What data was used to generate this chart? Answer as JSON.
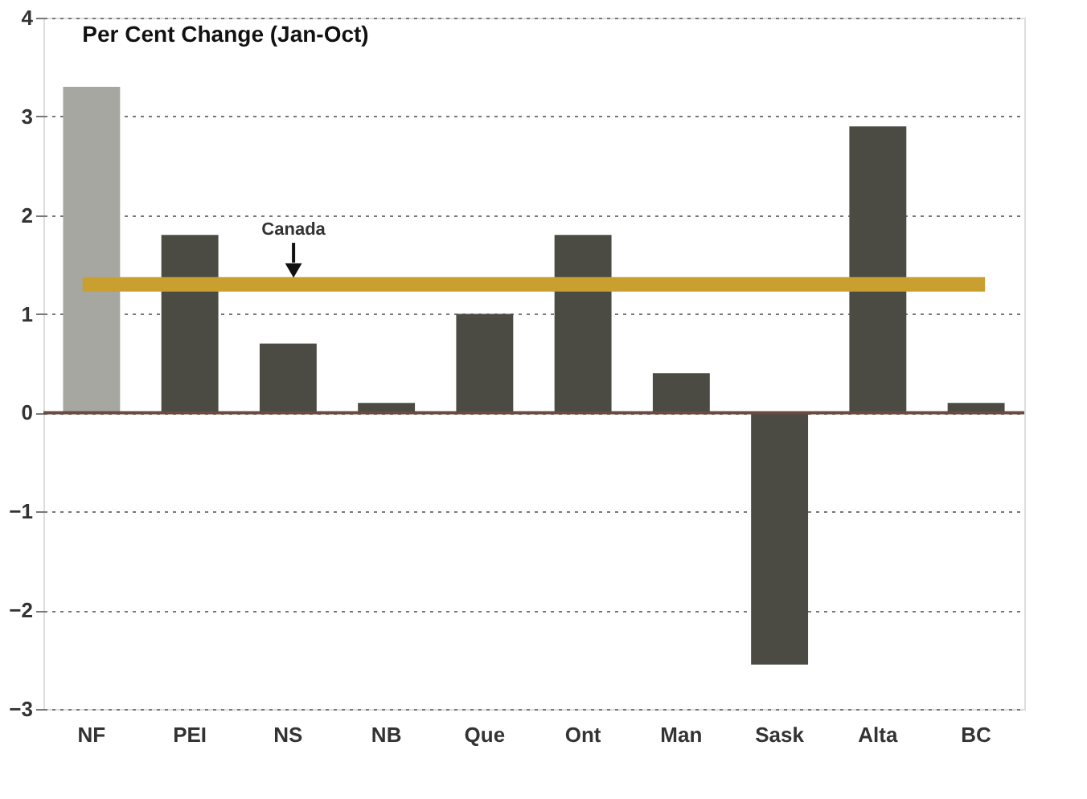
{
  "chart_data": {
    "type": "bar",
    "title": "Per Cent Change (Jan-Oct)",
    "categories": [
      "NF",
      "PEI",
      "NS",
      "NB",
      "Que",
      "Ont",
      "Man",
      "Sask",
      "Alta",
      "BC"
    ],
    "values": [
      3.3,
      1.8,
      0.7,
      0.1,
      1.0,
      1.8,
      0.4,
      -2.55,
      2.9,
      0.1
    ],
    "colors": [
      "#a7a7a2",
      "#4b4b43",
      "#4b4b43",
      "#4b4b43",
      "#4b4b43",
      "#4b4b43",
      "#4b4b43",
      "#4b4b43",
      "#4b4b43",
      "#4b4b43"
    ],
    "ylim": [
      -3,
      4
    ],
    "yticks": [
      -3,
      -2,
      -1,
      0,
      1,
      2,
      3,
      4
    ],
    "grid": "y",
    "ref_lines": [
      {
        "axis": "y",
        "value": 0,
        "color": "#6b4a40"
      },
      {
        "axis": "y",
        "value": 1.3,
        "label": "Canada",
        "color": "#c9a030"
      }
    ]
  }
}
